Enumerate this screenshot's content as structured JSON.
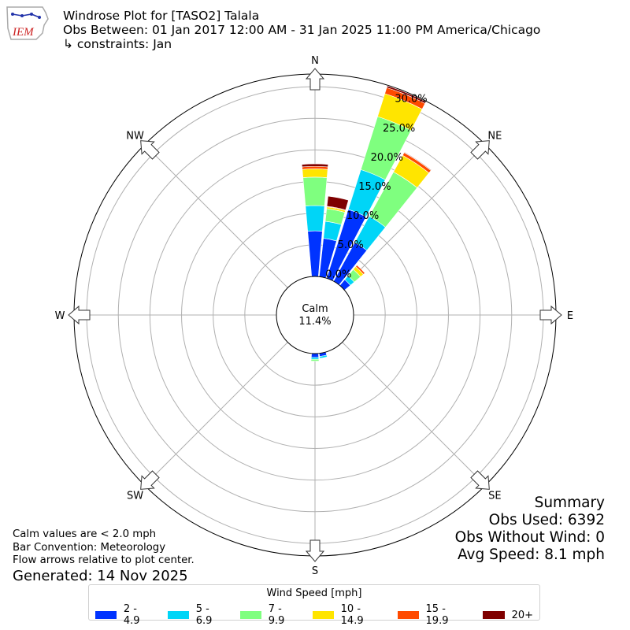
{
  "header": {
    "logo_text": "IEM",
    "title_line1": "Windrose Plot for [TASO2] Talala",
    "title_line2": "Obs Between: 01 Jan 2017 12:00 AM - 31 Jan 2025 11:00 PM America/Chicago",
    "title_line3": "↳ constraints: Jan"
  },
  "summary": {
    "heading": "Summary",
    "obs_used": "Obs Used: 6392",
    "obs_without_wind": "Obs Without Wind: 0",
    "avg_speed": "Avg Speed: 8.1 mph"
  },
  "notes": {
    "calm_note": "Calm values are < 2.0 mph",
    "bar_convention": "Bar Convention: Meteorology",
    "flow_arrows": "Flow arrows relative to plot center.",
    "generated": "Generated: 14 Nov 2025"
  },
  "colors": {
    "bins": [
      "#0033ff",
      "#00d5f7",
      "#7fff7f",
      "#ffe500",
      "#ff4a00",
      "#7f0000"
    ],
    "grid": "#b0b0b0",
    "arrow_fill": "#ffffff",
    "arrow_stroke": "#333333"
  },
  "chart_data": {
    "type": "windrose",
    "calm": {
      "label": "Calm",
      "value_text": "11.4%",
      "value": 11.4
    },
    "directions": [
      "N",
      "NE",
      "E",
      "SE",
      "S",
      "SW",
      "W",
      "NW"
    ],
    "radial_ticks": [
      "0.0%",
      "5.0%",
      "10.0%",
      "15.0%",
      "20.0%",
      "25.0%",
      "30.0%"
    ],
    "rmax": 32,
    "legend_title": "Wind Speed [mph]",
    "speed_bins": [
      "2 - 4.9",
      "5 - 6.9",
      "7 - 9.9",
      "10 - 14.9",
      "15 - 19.9",
      "20+"
    ],
    "sectors": [
      {
        "dir_deg": 0,
        "values": [
          7.2,
          4.0,
          4.5,
          1.3,
          0.4,
          0.4
        ]
      },
      {
        "dir_deg": 11.25,
        "values": [
          6.1,
          2.7,
          2.0,
          0.3,
          0.1,
          1.6
        ]
      },
      {
        "dir_deg": 22.5,
        "values": [
          11.4,
          6.6,
          8.8,
          3.8,
          1.0,
          0.3
        ]
      },
      {
        "dir_deg": 33.75,
        "values": [
          7.0,
          4.7,
          8.0,
          3.0,
          0.5,
          0.1
        ]
      },
      {
        "dir_deg": 45,
        "values": [
          1.2,
          0.8,
          1.3,
          0.6,
          0.3,
          0.0
        ]
      },
      {
        "dir_deg": 180,
        "values": [
          0.6,
          0.3,
          0.3,
          0.0,
          0.0,
          0.0
        ]
      },
      {
        "dir_deg": 168.75,
        "values": [
          0.5,
          0.3,
          0.0,
          0.0,
          0.0,
          0.0
        ]
      }
    ]
  }
}
